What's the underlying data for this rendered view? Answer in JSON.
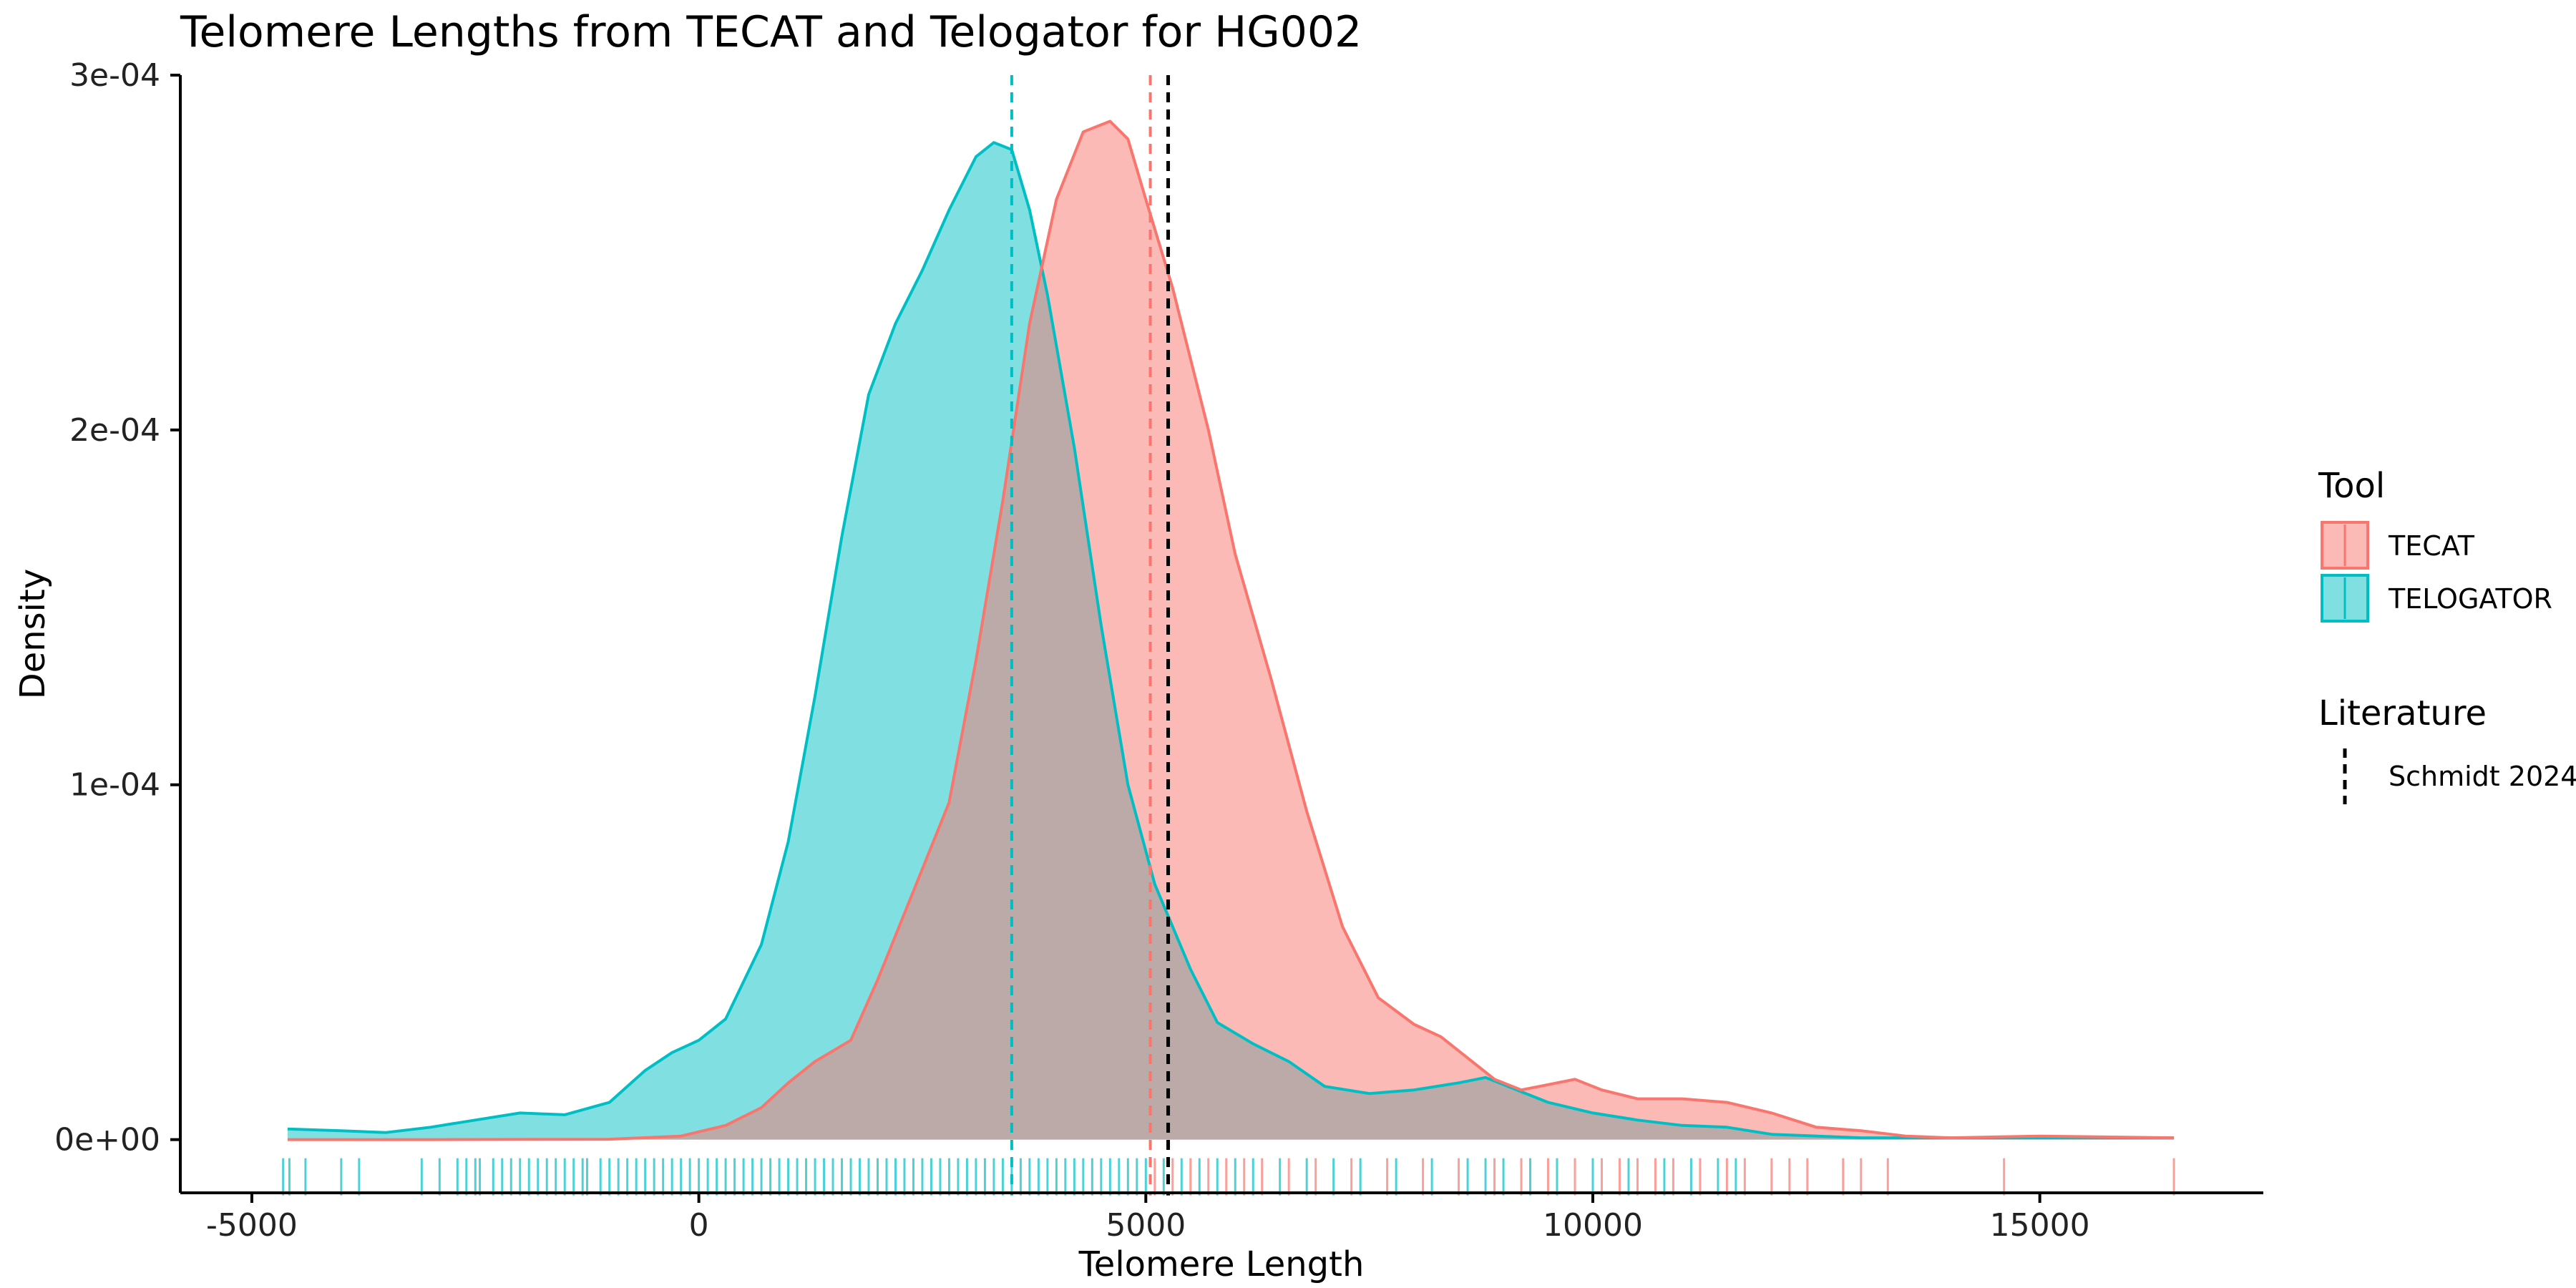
{
  "chart_data": {
    "type": "area",
    "title": "Telomere Lengths from TECAT and Telogator for HG002",
    "xlabel": "Telomere Length",
    "ylabel": "Density",
    "xlim": [
      -5800,
      17500
    ],
    "ylim": [
      -1.5e-05,
      0.0003
    ],
    "x_ticks": [
      -5000,
      0,
      5000,
      10000,
      15000
    ],
    "x_tick_labels": [
      "-5000",
      "0",
      "5000",
      "10000",
      "15000"
    ],
    "y_ticks": [
      0,
      0.0001,
      0.0002,
      0.0003
    ],
    "y_tick_labels": [
      "0e+00",
      "1e-04",
      "2e-04",
      "3e-04"
    ],
    "grid": false,
    "legend_position": "right",
    "legend": {
      "tool_title": "Tool",
      "literature_title": "Literature",
      "literature_label": "Schmidt 2024"
    },
    "series": [
      {
        "name": "TECAT",
        "color": "#F8766D",
        "fill": "#F8766D",
        "mean": 5050,
        "x": [
          -4600,
          -3000,
          -1000,
          -200,
          300,
          700,
          1000,
          1300,
          1700,
          2000,
          2400,
          2800,
          3100,
          3400,
          3700,
          4000,
          4300,
          4600,
          4800,
          5000,
          5300,
          5700,
          6000,
          6400,
          6800,
          7200,
          7600,
          8000,
          8300,
          8600,
          8900,
          9200,
          9500,
          9800,
          10100,
          10500,
          11000,
          11500,
          12000,
          12500,
          13000,
          13500,
          14000,
          15000,
          16500
        ],
        "y": [
          0,
          0,
          1e-07,
          1e-06,
          4e-06,
          9e-06,
          1.6e-05,
          2.2e-05,
          2.8e-05,
          4.5e-05,
          7e-05,
          9.5e-05,
          0.000135,
          0.00018,
          0.00023,
          0.000265,
          0.000284,
          0.000287,
          0.000282,
          0.000265,
          0.00024,
          0.0002,
          0.000165,
          0.00013,
          9.25e-05,
          6e-05,
          4e-05,
          3.25e-05,
          2.9e-05,
          2.3e-05,
          1.7e-05,
          1.4e-05,
          1.55e-05,
          1.7e-05,
          1.4e-05,
          1.15e-05,
          1.15e-05,
          1.05e-05,
          7.5e-06,
          3.5e-06,
          2.5e-06,
          1e-06,
          5e-07,
          1e-06,
          5e-07
        ]
      },
      {
        "name": "TELOGATOR",
        "color": "#00BFC4",
        "fill": "#00BFC4",
        "mean": 3500,
        "x": [
          -4600,
          -4000,
          -3500,
          -3000,
          -2500,
          -2000,
          -1500,
          -1000,
          -600,
          -300,
          0,
          300,
          700,
          1000,
          1300,
          1600,
          1900,
          2200,
          2500,
          2800,
          3100,
          3300,
          3500,
          3700,
          3900,
          4200,
          4500,
          4800,
          5100,
          5500,
          5800,
          6200,
          6600,
          7000,
          7500,
          8000,
          8500,
          8800,
          9100,
          9500,
          10000,
          10500,
          11000,
          11500,
          12000,
          13000,
          14000,
          15000,
          16500
        ],
        "y": [
          3e-06,
          2.5e-06,
          2e-06,
          3.5e-06,
          5.5e-06,
          7.5e-06,
          7e-06,
          1.05e-05,
          1.95e-05,
          2.45e-05,
          2.8e-05,
          3.4e-05,
          5.5e-05,
          8.4e-05,
          0.000125,
          0.00017,
          0.00021,
          0.00023,
          0.000245,
          0.000262,
          0.000277,
          0.000281,
          0.000279,
          0.000262,
          0.000238,
          0.000195,
          0.000145,
          0.0001,
          7.2e-05,
          4.8e-05,
          3.3e-05,
          2.7e-05,
          2.2e-05,
          1.5e-05,
          1.3e-05,
          1.4e-05,
          1.6e-05,
          1.75e-05,
          1.45e-05,
          1.05e-05,
          7.5e-06,
          5.5e-06,
          4e-06,
          3.5e-06,
          1.5e-06,
          5e-07,
          5e-07,
          5e-07,
          5e-07
        ]
      }
    ],
    "reference_lines": [
      {
        "label": "Schmidt 2024",
        "x": 5250,
        "color": "#000000",
        "style": "dashed"
      }
    ],
    "rug": {
      "TELOGATOR": [
        -4650,
        -4580,
        -4400,
        -4000,
        -3800,
        -3100,
        -2900,
        -2700,
        -2600,
        -2500,
        -2450,
        -2300,
        -2200,
        -2100,
        -2000,
        -1900,
        -1800,
        -1700,
        -1600,
        -1500,
        -1400,
        -1300,
        -1250,
        -1100,
        -1000,
        -900,
        -800,
        -700,
        -600,
        -500,
        -400,
        -300,
        -200,
        -100,
        0,
        100,
        200,
        300,
        400,
        500,
        600,
        700,
        800,
        900,
        1000,
        1100,
        1200,
        1300,
        1400,
        1500,
        1600,
        1700,
        1800,
        1900,
        2000,
        2100,
        2200,
        2300,
        2400,
        2500,
        2600,
        2700,
        2800,
        2900,
        3000,
        3100,
        3200,
        3300,
        3400,
        3500,
        3600,
        3700,
        3800,
        3900,
        4000,
        4100,
        4200,
        4300,
        4400,
        4500,
        4600,
        4700,
        4800,
        4900,
        5000,
        5200,
        5400,
        5600,
        5800,
        6000,
        6200,
        6500,
        6800,
        7100,
        7400,
        7800,
        8200,
        8600,
        8800,
        9000,
        9300,
        9600,
        10000,
        10400,
        10800,
        11100,
        11400,
        11600
      ],
      "TECAT": [
        5100,
        5300,
        5500,
        5700,
        5900,
        6100,
        6300,
        6600,
        6900,
        7300,
        7700,
        8100,
        8500,
        8900,
        9200,
        9500,
        9800,
        10100,
        10300,
        10500,
        10700,
        10900,
        11200,
        11500,
        11700,
        12000,
        12200,
        12400,
        12800,
        13000,
        13300,
        14600,
        16500
      ]
    }
  }
}
